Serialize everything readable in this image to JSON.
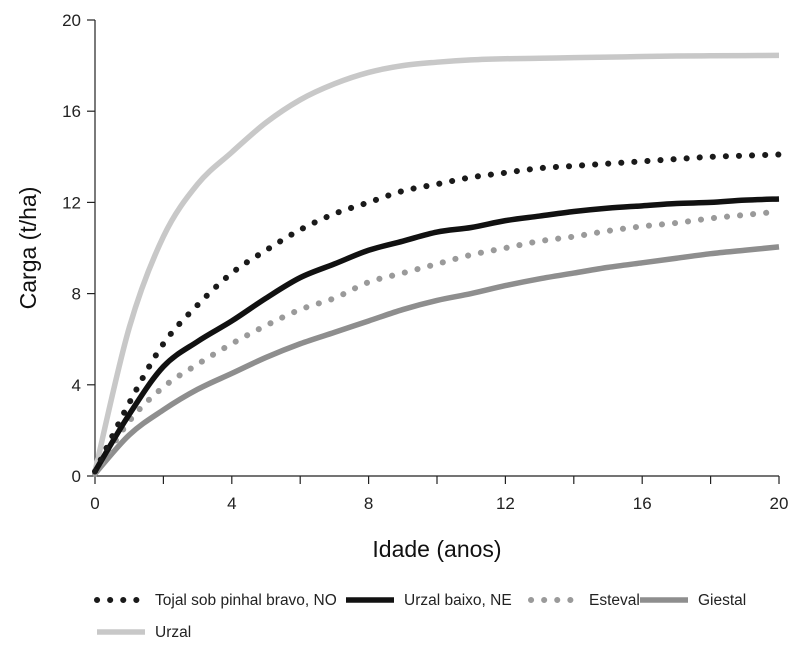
{
  "chart_data": {
    "type": "line",
    "title": "",
    "xlabel": "Idade (anos)",
    "ylabel": "Carga (t/ha)",
    "xlim": [
      0,
      20
    ],
    "ylim": [
      0,
      20
    ],
    "xticks": [
      "0",
      "4",
      "8",
      "12",
      "16",
      "20"
    ],
    "yticks": [
      "0",
      "4",
      "8",
      "12",
      "16",
      "20"
    ],
    "minor_xticks": [
      2,
      6,
      10,
      14,
      18
    ],
    "grid": false,
    "legend_position": "bottom",
    "x": [
      0,
      1,
      2,
      3,
      4,
      5,
      6,
      7,
      8,
      9,
      10,
      11,
      12,
      13,
      14,
      15,
      16,
      17,
      18,
      19,
      20
    ],
    "series": [
      {
        "name": "Tojal sob pinhal bravo, NO",
        "style": "dotted",
        "color": "#1a1a1a",
        "values": [
          0.2,
          3.2,
          5.8,
          7.5,
          8.9,
          9.9,
          10.8,
          11.5,
          12.0,
          12.5,
          12.8,
          13.1,
          13.3,
          13.5,
          13.6,
          13.7,
          13.8,
          13.9,
          14.0,
          14.05,
          14.1
        ]
      },
      {
        "name": "Urzal baixo, NE",
        "style": "solid",
        "color": "#111111",
        "values": [
          0.2,
          2.7,
          4.8,
          5.9,
          6.8,
          7.8,
          8.7,
          9.3,
          9.9,
          10.3,
          10.7,
          10.9,
          11.2,
          11.4,
          11.6,
          11.75,
          11.85,
          11.95,
          12.0,
          12.1,
          12.15
        ]
      },
      {
        "name": "Esteval",
        "style": "dotted",
        "color": "#9a9a9a",
        "values": [
          0.1,
          2.4,
          3.9,
          4.9,
          5.8,
          6.6,
          7.3,
          7.8,
          8.5,
          8.9,
          9.3,
          9.7,
          10.0,
          10.3,
          10.5,
          10.75,
          10.95,
          11.1,
          11.3,
          11.45,
          11.6
        ]
      },
      {
        "name": "Giestal",
        "style": "solid",
        "color": "#8e8e8e",
        "values": [
          0.1,
          1.8,
          2.9,
          3.8,
          4.5,
          5.2,
          5.8,
          6.3,
          6.8,
          7.3,
          7.7,
          8.0,
          8.35,
          8.65,
          8.9,
          9.15,
          9.35,
          9.55,
          9.75,
          9.9,
          10.05
        ]
      },
      {
        "name": "Urzal",
        "style": "solid",
        "color": "#c8c8c8",
        "values": [
          0.2,
          6.5,
          10.5,
          12.8,
          14.2,
          15.5,
          16.5,
          17.2,
          17.7,
          18.0,
          18.15,
          18.25,
          18.3,
          18.32,
          18.35,
          18.37,
          18.4,
          18.42,
          18.43,
          18.44,
          18.45
        ]
      }
    ]
  }
}
